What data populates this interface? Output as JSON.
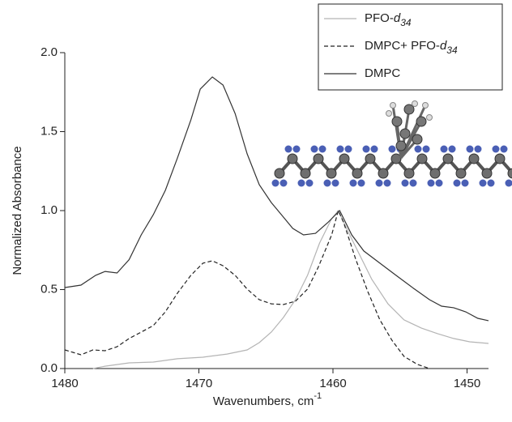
{
  "chart_data": {
    "type": "line",
    "x_label": "Wavenumbers, cm-1",
    "y_label": "Normalized Absorbance",
    "xlim": [
      1480,
      1448.4
    ],
    "ylim": [
      0,
      2.0
    ],
    "xticks": [
      1480,
      1470,
      1460,
      1450
    ],
    "yticks": [
      {
        "value": 0,
        "label": "0.0"
      },
      {
        "value": 0.5,
        "label": "0.5"
      },
      {
        "value": 1.0,
        "label": "1.0"
      },
      {
        "value": 1.5,
        "label": "1.5"
      },
      {
        "value": 2.0,
        "label": "2.0"
      }
    ],
    "legend": "upper right",
    "series": [
      {
        "name": "PFO-d34",
        "color": "#b4b4b4",
        "dash": "solid",
        "x": [
          1477.9,
          1477.0,
          1475.2,
          1473.4,
          1471.6,
          1469.7,
          1467.9,
          1466.4,
          1465.5,
          1464.6,
          1463.7,
          1462.8,
          1461.9,
          1461.0,
          1460.1,
          1459.6,
          1458.9,
          1458.0,
          1457.1,
          1455.9,
          1454.7,
          1453.4,
          1452.2,
          1451.0,
          1449.8,
          1448.4
        ],
        "values": [
          0,
          0.015,
          0.036,
          0.041,
          0.062,
          0.072,
          0.092,
          0.118,
          0.164,
          0.231,
          0.323,
          0.436,
          0.59,
          0.795,
          0.949,
          1.0,
          0.872,
          0.718,
          0.564,
          0.41,
          0.308,
          0.256,
          0.221,
          0.19,
          0.169,
          0.159
        ]
      },
      {
        "name": "DMPC+ PFO-d34",
        "color": "#222222",
        "dash": "dashed",
        "x": [
          1480,
          1478.8,
          1477.9,
          1477.0,
          1476.1,
          1475.2,
          1474.3,
          1473.4,
          1472.5,
          1471.6,
          1470.6,
          1469.7,
          1469.0,
          1468.2,
          1467.3,
          1466.4,
          1465.5,
          1464.6,
          1463.7,
          1462.8,
          1461.9,
          1461.1,
          1460.1,
          1459.6,
          1459.2,
          1458.3,
          1457.4,
          1456.5,
          1455.6,
          1454.7,
          1453.7,
          1452.8
        ],
        "values": [
          0.118,
          0.087,
          0.118,
          0.113,
          0.138,
          0.19,
          0.231,
          0.272,
          0.359,
          0.477,
          0.59,
          0.667,
          0.682,
          0.651,
          0.59,
          0.503,
          0.436,
          0.41,
          0.405,
          0.426,
          0.503,
          0.641,
          0.846,
          1.0,
          0.923,
          0.692,
          0.487,
          0.308,
          0.179,
          0.077,
          0.026,
          0.0
        ]
      },
      {
        "name": "DMPC",
        "color": "#333333",
        "dash": "solid",
        "x": [
          1480,
          1478.8,
          1477.7,
          1477.0,
          1476.1,
          1475.2,
          1474.3,
          1473.4,
          1472.5,
          1471.6,
          1470.6,
          1469.9,
          1469.0,
          1468.2,
          1467.3,
          1466.4,
          1465.5,
          1464.6,
          1463.7,
          1463.0,
          1462.2,
          1461.3,
          1460.4,
          1459.5,
          1458.6,
          1457.7,
          1456.5,
          1455.3,
          1454.0,
          1452.8,
          1451.9,
          1451.0,
          1450.1,
          1449.2,
          1448.4
        ],
        "values": [
          0.513,
          0.528,
          0.59,
          0.615,
          0.605,
          0.69,
          0.846,
          0.974,
          1.128,
          1.333,
          1.574,
          1.769,
          1.846,
          1.795,
          1.615,
          1.359,
          1.164,
          1.051,
          0.959,
          0.887,
          0.846,
          0.856,
          0.923,
          1.0,
          0.846,
          0.744,
          0.667,
          0.59,
          0.508,
          0.436,
          0.395,
          0.385,
          0.359,
          0.318,
          0.303
        ]
      }
    ]
  }
}
